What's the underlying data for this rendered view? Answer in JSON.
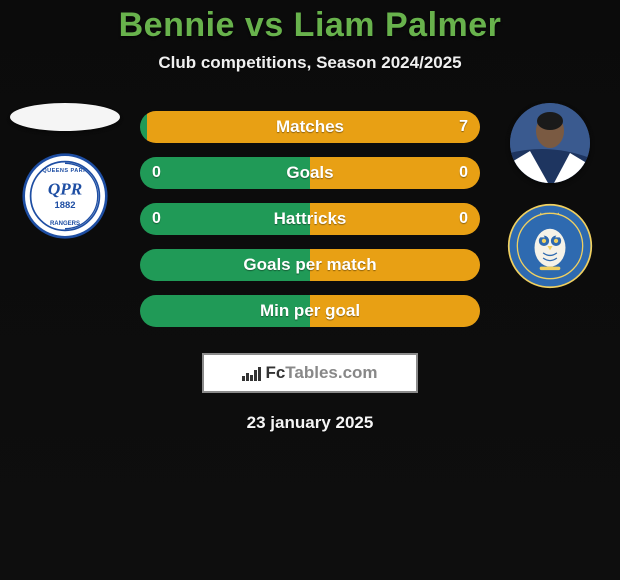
{
  "title_text": "Bennie vs Liam Palmer",
  "title_color": "#68b24c",
  "subtitle": "Club competitions, Season 2024/2025",
  "player1_color": "#209a57",
  "player2_color": "#e8a014",
  "bars": [
    {
      "label": "Matches",
      "left": "",
      "right": "7",
      "p1": 0.02,
      "p2": 0.98
    },
    {
      "label": "Goals",
      "left": "0",
      "right": "0",
      "p1": 0.5,
      "p2": 0.5
    },
    {
      "label": "Hattricks",
      "left": "0",
      "right": "0",
      "p1": 0.5,
      "p2": 0.5
    },
    {
      "label": "Goals per match",
      "left": "",
      "right": "",
      "p1": 0.5,
      "p2": 0.5
    },
    {
      "label": "Min per goal",
      "left": "",
      "right": "",
      "p1": 0.5,
      "p2": 0.5
    }
  ],
  "club1": {
    "name": "Queens Park Rangers",
    "year": "1882",
    "bg": "#ffffff",
    "fg": "#1e4ea3"
  },
  "club2": {
    "name": "Sheffield Wednesday",
    "bg": "#2e6ab0",
    "fg": "#f0d060"
  },
  "watermark": {
    "brand_prefix": "Fc",
    "brand_suffix": "Tables.com",
    "border_color": "#8b8b8b"
  },
  "date": "23 january 2025",
  "bar_icon_heights": [
    5,
    8,
    6,
    11,
    14
  ]
}
